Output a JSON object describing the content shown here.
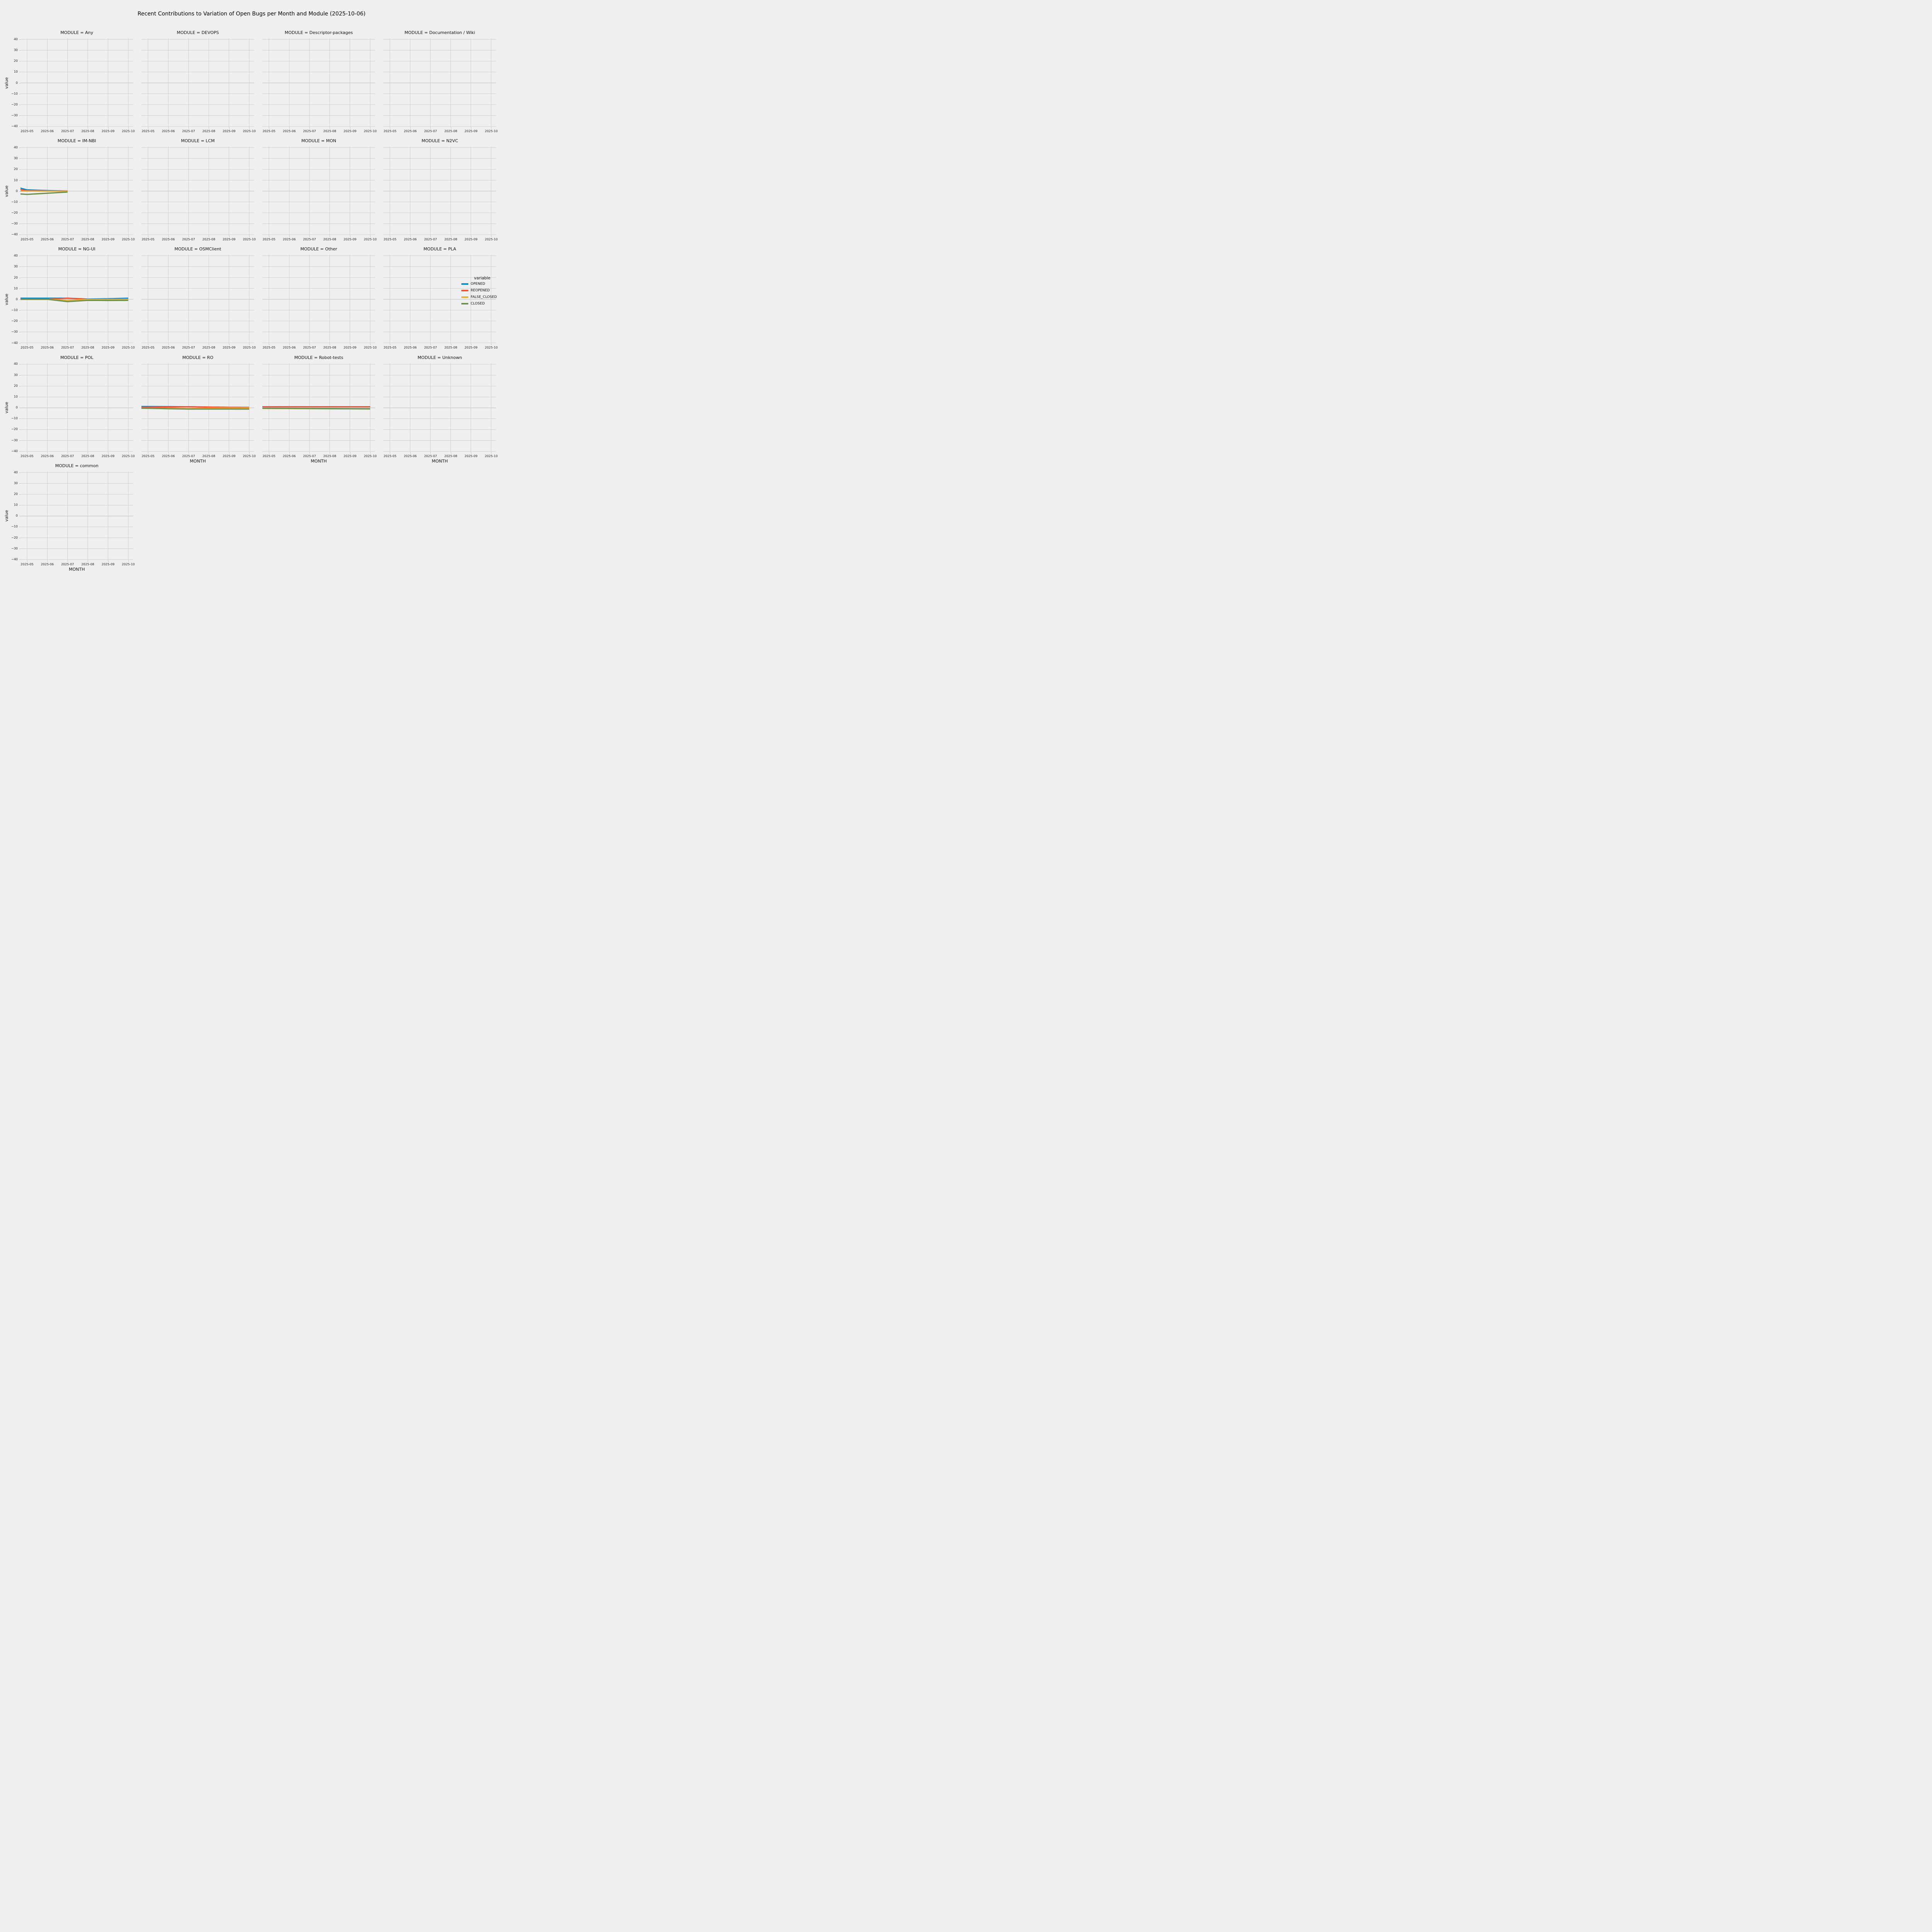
{
  "figure": {
    "suptitle": "Recent Contributions to Variation of Open Bugs per Month and Module (2025-10-06)",
    "background_color": "#f0f0f0",
    "grid_color": "#cbcbcb"
  },
  "axes": {
    "xlabel": "MONTH",
    "ylabel": "value",
    "x_ticklabels": [
      "2025-05",
      "2025-06",
      "2025-07",
      "2025-08",
      "2025-09",
      "2025-10"
    ],
    "y_ticklabels": [
      "40",
      "30",
      "20",
      "10",
      "0",
      "−10",
      "−20",
      "−30",
      "−40"
    ],
    "y_tickvalues": [
      40,
      30,
      20,
      10,
      0,
      -10,
      -20,
      -30,
      -40
    ],
    "ylim": [
      -41,
      41
    ],
    "grid": "on"
  },
  "legend": {
    "title": "variable",
    "entries": [
      {
        "label": "OPENED",
        "color": "#008fd5"
      },
      {
        "label": "REOPENED",
        "color": "#fc4f30"
      },
      {
        "label": "FALSE_CLOSED",
        "color": "#e5ae38"
      },
      {
        "label": "CLOSED",
        "color": "#6d904f"
      }
    ]
  },
  "chart_data": {
    "type": "line",
    "title": "Recent Contributions to Variation of Open Bugs per Month and Module (2025-10-06)",
    "xlabel": "MONTH",
    "ylabel": "value",
    "ylim": [
      -41,
      41
    ],
    "legend_position": "right of row 3",
    "note": "17 facets in a 4-column grid; month 2025-04 points lie left of the visible axis range (lines clipped at plot edge); facets without series show no data",
    "facets": [
      {
        "module": "Any",
        "title": "MODULE = Any",
        "x": [],
        "series": []
      },
      {
        "module": "DEVOPS",
        "title": "MODULE = DEVOPS",
        "x": [],
        "series": []
      },
      {
        "module": "Descriptor-packages",
        "title": "MODULE = Descriptor-packages",
        "x": [],
        "series": []
      },
      {
        "module": "Documentation / Wiki",
        "title": "MODULE = Documentation / Wiki",
        "x": [],
        "series": []
      },
      {
        "module": "IM-NBI",
        "title": "MODULE = IM-NBI",
        "x": [
          "2025-04",
          "2025-05",
          "2025-06",
          "2025-07"
        ],
        "series": [
          {
            "name": "OPENED",
            "values": [
              6,
              1.1,
              0.5,
              0.1
            ]
          },
          {
            "name": "REOPENED",
            "values": [
              3.5,
              0.3,
              0.1,
              0.1
            ]
          },
          {
            "name": "FALSE_CLOSED",
            "values": [
              0,
              0,
              -0.1,
              -0.1
            ]
          },
          {
            "name": "CLOSED",
            "values": [
              -1.9,
              -3,
              -2,
              -0.9
            ]
          }
        ]
      },
      {
        "module": "LCM",
        "title": "MODULE = LCM",
        "x": [],
        "series": []
      },
      {
        "module": "MON",
        "title": "MODULE = MON",
        "x": [],
        "series": []
      },
      {
        "module": "N2VC",
        "title": "MODULE = N2VC",
        "x": [],
        "series": []
      },
      {
        "module": "NG-UI",
        "title": "MODULE = NG-UI",
        "x": [
          "2025-04",
          "2025-05",
          "2025-06",
          "2025-07",
          "2025-08",
          "2025-09",
          "2025-10"
        ],
        "series": [
          {
            "name": "OPENED",
            "values": [
              1,
              1,
              1,
              1,
              0.2,
              0.5,
              1
            ]
          },
          {
            "name": "REOPENED",
            "values": [
              0,
              0,
              0,
              1,
              0,
              0,
              0
            ]
          },
          {
            "name": "FALSE_CLOSED",
            "values": [
              0,
              0,
              0,
              -1,
              -0.1,
              -0.2,
              0
            ]
          },
          {
            "name": "CLOSED",
            "values": [
              0,
              0,
              0,
              -2.2,
              -1,
              -1.1,
              -1
            ]
          }
        ]
      },
      {
        "module": "OSMClient",
        "title": "MODULE = OSMClient",
        "x": [],
        "series": []
      },
      {
        "module": "Other",
        "title": "MODULE = Other",
        "x": [],
        "series": []
      },
      {
        "module": "PLA",
        "title": "MODULE = PLA",
        "x": [],
        "series": []
      },
      {
        "module": "POL",
        "title": "MODULE = POL",
        "x": [],
        "series": []
      },
      {
        "module": "RO",
        "title": "MODULE = RO",
        "x": [
          "2025-04",
          "2025-05",
          "2025-06",
          "2025-07",
          "2025-08",
          "2025-09",
          "2025-10"
        ],
        "series": [
          {
            "name": "OPENED",
            "values": [
              1.3,
              1.2,
              1.1,
              1,
              0.7,
              0.5,
              0.4
            ]
          },
          {
            "name": "REOPENED",
            "values": [
              0.5,
              0.5,
              0.7,
              1,
              0.7,
              0.5,
              0.4
            ]
          },
          {
            "name": "FALSE_CLOSED",
            "values": [
              -0.2,
              -0.3,
              -0.6,
              -0.9,
              -0.3,
              -0.2,
              -0.1
            ]
          },
          {
            "name": "CLOSED",
            "values": [
              -0.3,
              -0.4,
              -0.8,
              -1.1,
              -1.1,
              -1.1,
              -1.15
            ]
          }
        ]
      },
      {
        "module": "Robot-tests",
        "title": "MODULE = Robot-tests",
        "x": [
          "2025-04",
          "2025-05",
          "2025-06",
          "2025-07",
          "2025-08",
          "2025-09",
          "2025-10"
        ],
        "series": [
          {
            "name": "OPENED",
            "values": [
              1,
              1,
              1,
              1,
              1,
              1,
              1
            ]
          },
          {
            "name": "REOPENED",
            "values": [
              1,
              1,
              1,
              1,
              1,
              1,
              1
            ]
          },
          {
            "name": "FALSE_CLOSED",
            "values": [
              -0.5,
              -0.55,
              -0.65,
              -0.75,
              -0.85,
              -0.95,
              -1.05
            ]
          },
          {
            "name": "CLOSED",
            "values": [
              -0.35,
              -0.4,
              -0.5,
              -0.6,
              -0.7,
              -0.8,
              -0.9
            ]
          }
        ]
      },
      {
        "module": "Unknown",
        "title": "MODULE = Unknown",
        "x": [],
        "series": []
      },
      {
        "module": "common",
        "title": "MODULE = common",
        "x": [],
        "series": []
      }
    ],
    "xlabel_facets": [
      "RO",
      "Robot-tests",
      "Unknown",
      "common"
    ]
  }
}
